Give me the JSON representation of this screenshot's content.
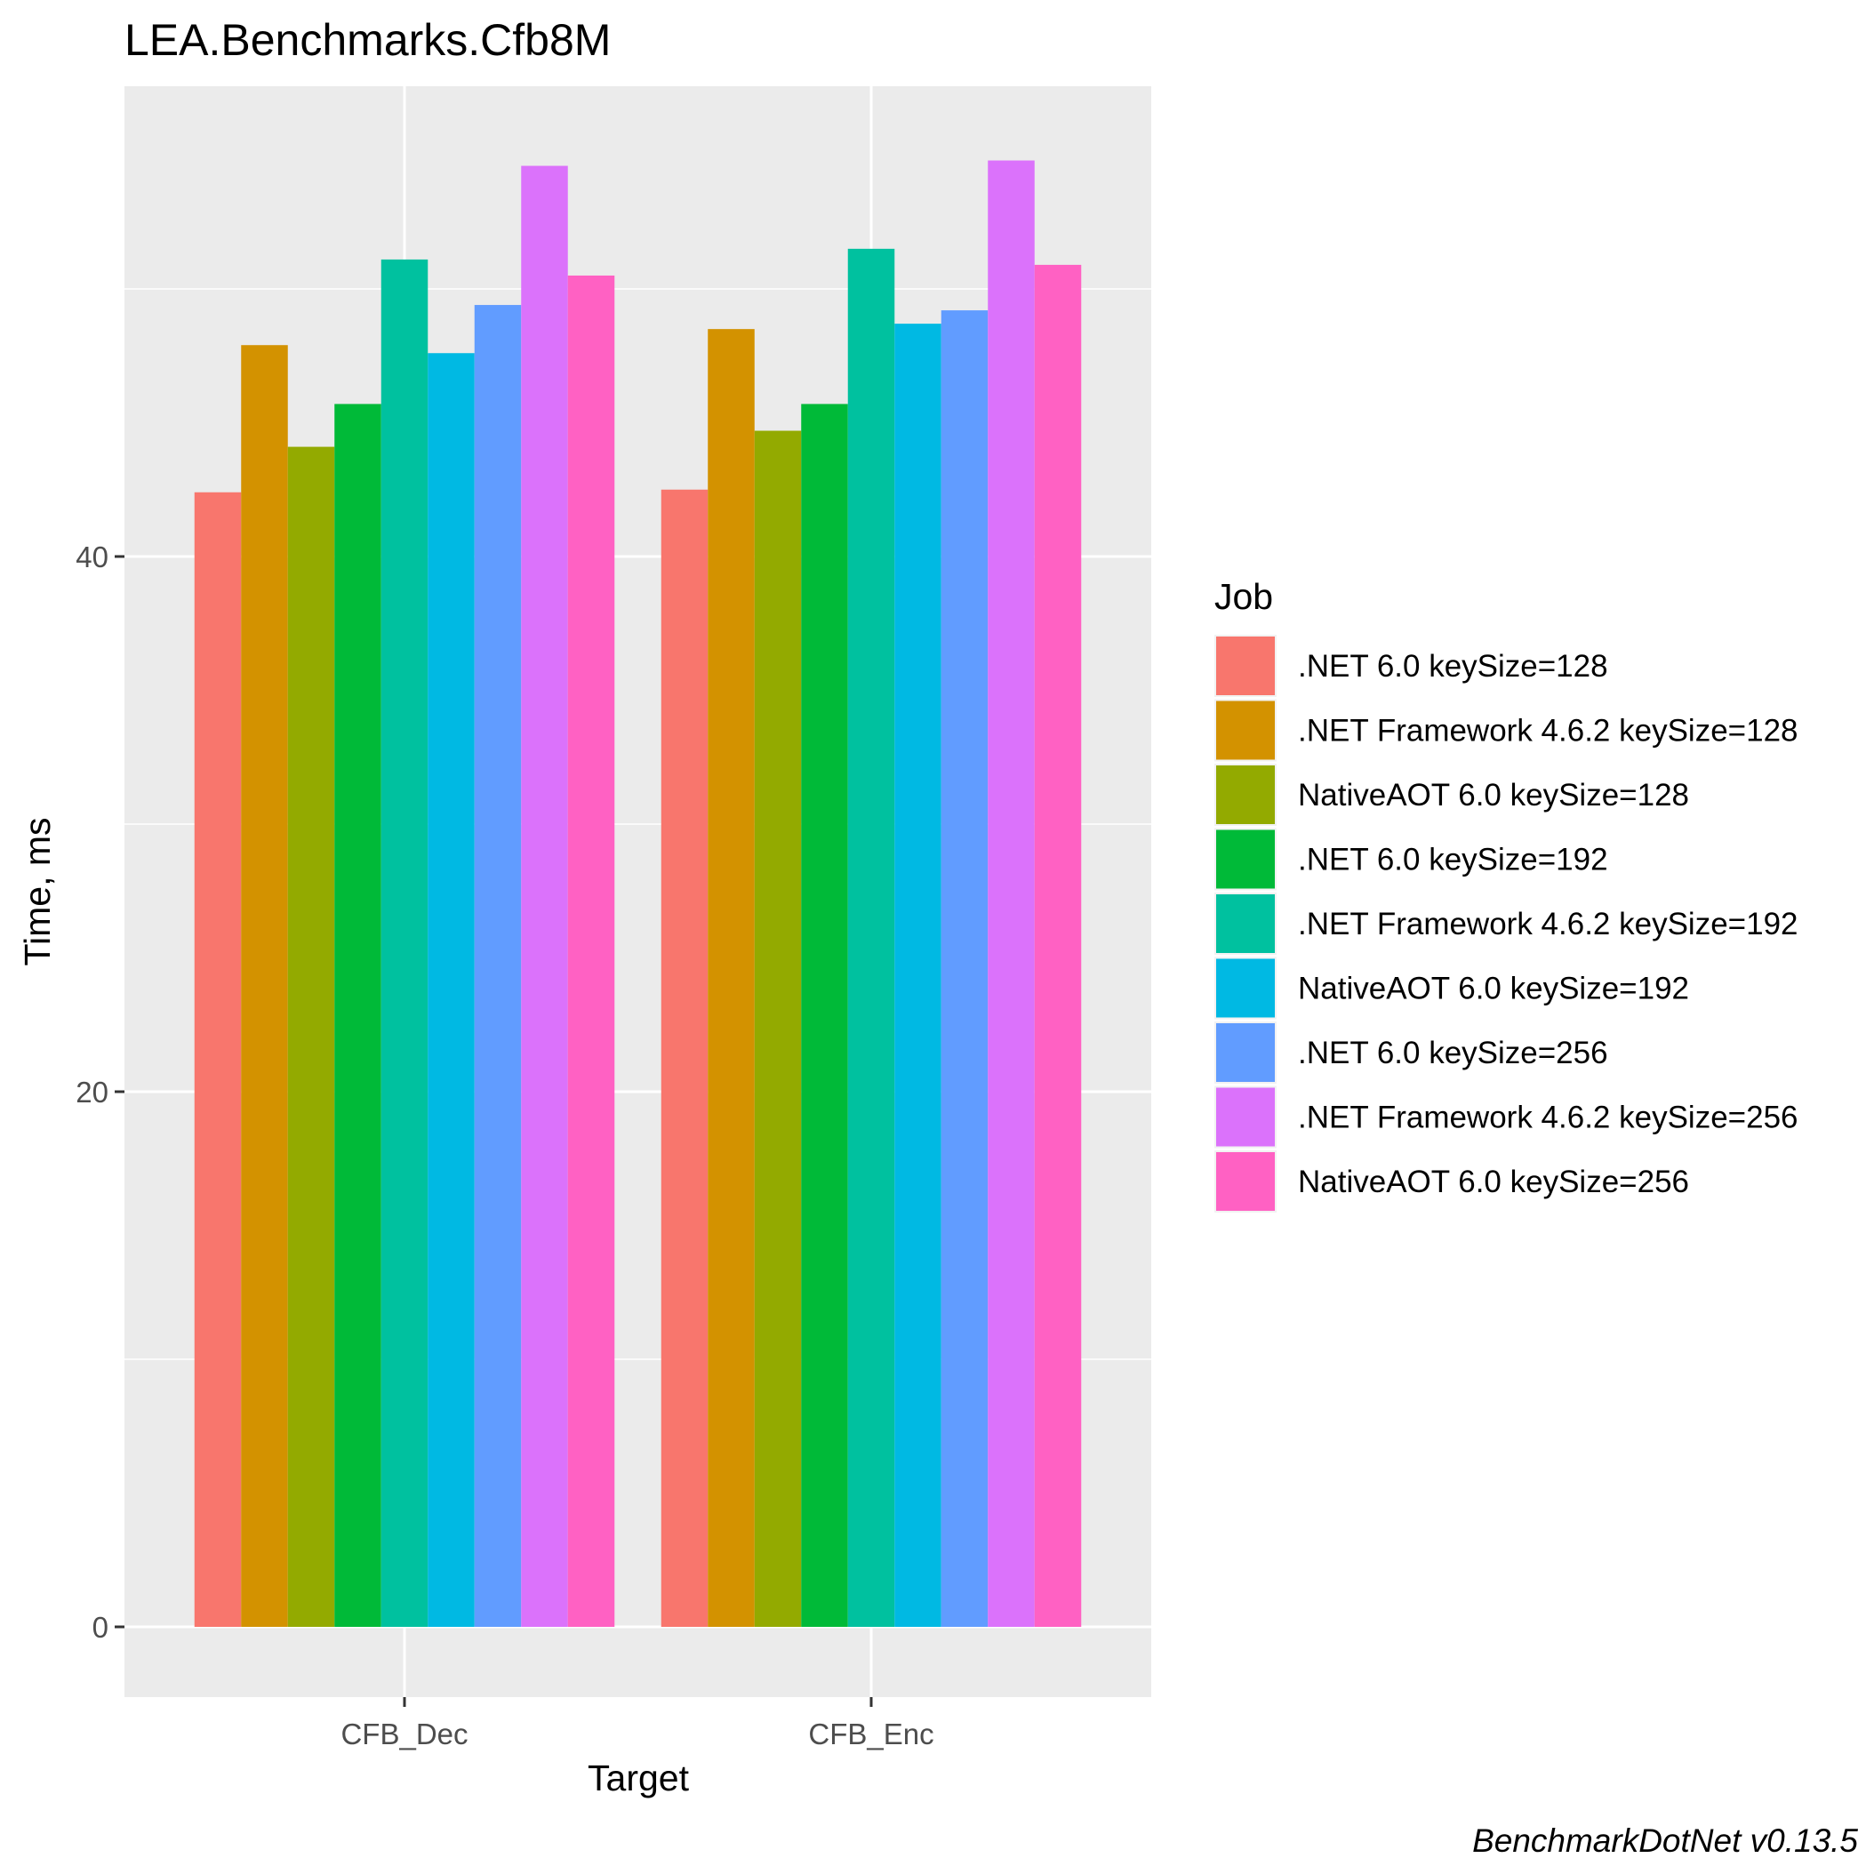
{
  "chart_data": {
    "type": "bar",
    "title": "LEA.Benchmarks.Cfb8M",
    "xlabel": "Target",
    "ylabel": "Time, ms",
    "categories": [
      "CFB_Dec",
      "CFB_Enc"
    ],
    "yticks": [
      "0",
      "20",
      "40"
    ],
    "ylim": [
      -2.7,
      57.5
    ],
    "grid": true,
    "legend_title": "Job",
    "legend_position": "right",
    "caption": "BenchmarkDotNet v0.13.5",
    "series": [
      {
        "name": ".NET 6.0 keySize=128",
        "color": "#F8766D",
        "values": [
          42.4,
          42.5
        ]
      },
      {
        "name": ".NET Framework 4.6.2 keySize=128",
        "color": "#D39200",
        "values": [
          47.9,
          48.5
        ]
      },
      {
        "name": "NativeAOT 6.0 keySize=128",
        "color": "#93AA00",
        "values": [
          44.1,
          44.7
        ]
      },
      {
        "name": ".NET 6.0 keySize=192",
        "color": "#00BA38",
        "values": [
          45.7,
          45.7
        ]
      },
      {
        "name": ".NET Framework 4.6.2 keySize=192",
        "color": "#00C19F",
        "values": [
          51.1,
          51.5
        ]
      },
      {
        "name": "NativeAOT 6.0 keySize=192",
        "color": "#00B9E3",
        "values": [
          47.6,
          48.7
        ]
      },
      {
        "name": ".NET 6.0 keySize=256",
        "color": "#619CFF",
        "values": [
          49.4,
          49.2
        ]
      },
      {
        "name": ".NET Framework 4.6.2 keySize=256",
        "color": "#DB72FB",
        "values": [
          54.6,
          54.8
        ]
      },
      {
        "name": "NativeAOT 6.0 keySize=256",
        "color": "#FF61C3",
        "values": [
          50.5,
          50.9
        ]
      }
    ]
  }
}
